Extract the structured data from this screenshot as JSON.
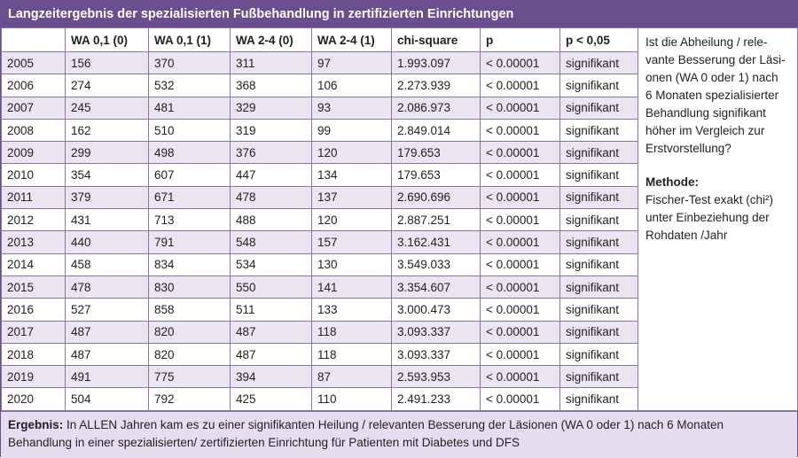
{
  "title": "Langzeitergebnis der spezialisierten Fußbehandlung in zertifizierten Einrichtungen",
  "table": {
    "header": [
      "WA 0,1 (0)",
      "WA 0,1 (1)",
      "WA 2-4 (0)",
      "WA 2-4 (1)",
      "chi-square",
      "p",
      "p < 0,05"
    ],
    "rows": [
      [
        "2005",
        "156",
        "370",
        "311",
        "97",
        "1.993.097",
        "< 0.00001",
        "signifikant"
      ],
      [
        "2006",
        "274",
        "532",
        "368",
        "106",
        "2.273.939",
        "< 0.00001",
        "signifikant"
      ],
      [
        "2007",
        "245",
        "481",
        "329",
        "93",
        "2.086.973",
        "< 0.00001",
        "signifikant"
      ],
      [
        "2008",
        "162",
        "510",
        "319",
        "99",
        "2.849.014",
        "< 0.00001",
        "signifikant"
      ],
      [
        "2009",
        "299",
        "498",
        "376",
        "120",
        "179.653",
        "< 0.00001",
        "signifikant"
      ],
      [
        "2010",
        "354",
        "607",
        "447",
        "134",
        "179.653",
        "< 0.00001",
        "signifikant"
      ],
      [
        "2011",
        "379",
        "671",
        "478",
        "137",
        "2.690.696",
        "< 0.00001",
        "signifikant"
      ],
      [
        "2012",
        "431",
        "713",
        "488",
        "120",
        "2.887.251",
        "< 0.00001",
        "signifikant"
      ],
      [
        "2013",
        "440",
        "791",
        "548",
        "157",
        "3.162.431",
        "< 0.00001",
        "signifikant"
      ],
      [
        "2014",
        "458",
        "834",
        "534",
        "130",
        "3.549.033",
        "< 0.00001",
        "signifikant"
      ],
      [
        "2015",
        "478",
        "830",
        "550",
        "141",
        "3.354.607",
        "< 0.00001",
        "signifikant"
      ],
      [
        "2016",
        "527",
        "858",
        "511",
        "133",
        "3.000.473",
        "< 0.00001",
        "signifikant"
      ],
      [
        "2017",
        "487",
        "820",
        "487",
        "118",
        "3.093.337",
        "< 0.00001",
        "signifikant"
      ],
      [
        "2018",
        "487",
        "820",
        "487",
        "118",
        "3.093.337",
        "< 0.00001",
        "signifikant"
      ],
      [
        "2019",
        "491",
        "775",
        "394",
        "87",
        "2.593.953",
        "< 0.00001",
        "signifikant"
      ],
      [
        "2020",
        "504",
        "792",
        "425",
        "110",
        "2.491.233",
        "< 0.00001",
        "signifikant"
      ]
    ]
  },
  "side_note": {
    "question": [
      "Ist die Abheilung / rele-",
      "vante Besserung der Läsi-",
      "onen (WA 0 oder 1) nach",
      "6 Monaten spezialisierter",
      "Behandlung signifikant",
      "höher im Vergleich zur",
      "Erstvorstellung?"
    ],
    "method_heading": "Methode:",
    "method": [
      "Fischer-Test exakt (chi²)",
      "unter Einbeziehung der",
      "Rohdaten /Jahr"
    ]
  },
  "footer": {
    "label": "Ergebnis:",
    "text": "In ALLEN Jahren kam es zu einer signifikanten Heilung / relevanten Besserung der Läsionen (WA 0 oder 1) nach 6 Monaten Behandlung in einer spezialisierten/ zertifizierten Einrichtung für Patienten mit Diabetes und DFS"
  }
}
